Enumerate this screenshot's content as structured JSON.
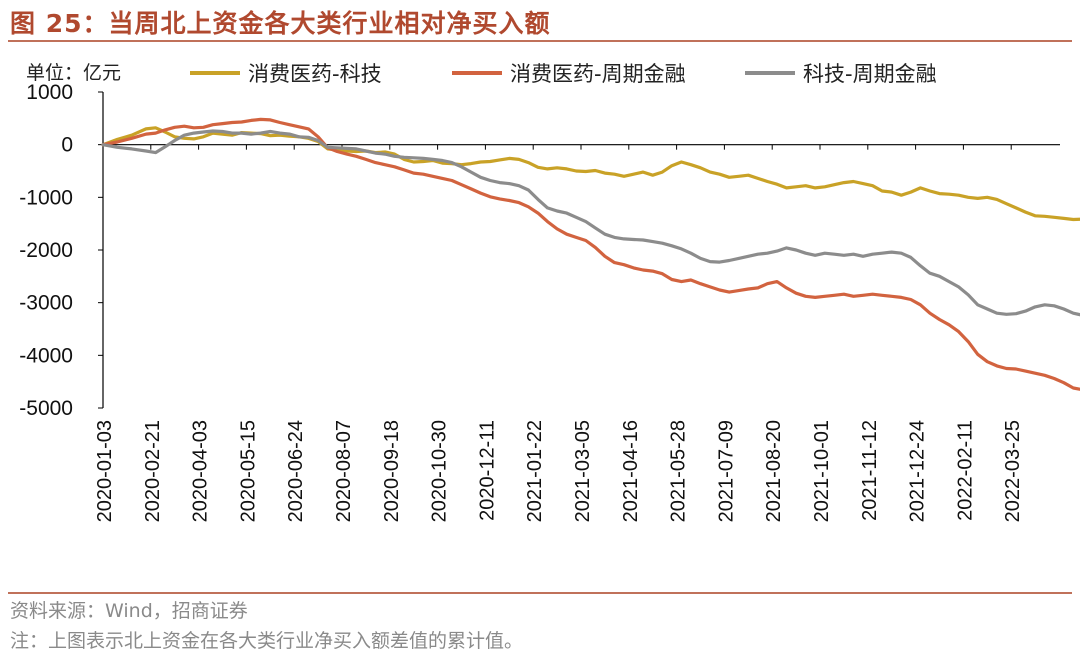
{
  "figure": {
    "title": "图 25：当周北上资金各大类行业相对净买入额",
    "source": "资料来源：Wind，招商证券",
    "note": "注：上图表示北上资金在各大类行业净买入额差值的累计值。"
  },
  "chart_data": {
    "type": "line",
    "unit_label": "单位：亿元",
    "ylim": [
      -5000,
      1000
    ],
    "yticks": [
      1000,
      0,
      -1000,
      -2000,
      -3000,
      -4000,
      -5000
    ],
    "xticks": [
      "2020-01-03",
      "2020-02-21",
      "2020-04-03",
      "2020-05-15",
      "2020-06-24",
      "2020-08-07",
      "2020-09-18",
      "2020-10-30",
      "2020-12-11",
      "2021-01-22",
      "2021-03-05",
      "2021-04-16",
      "2021-05-28",
      "2021-07-09",
      "2021-08-20",
      "2021-10-01",
      "2021-11-12",
      "2021-12-24",
      "2022-02-11",
      "2022-03-25"
    ],
    "x_end_index": 20,
    "legend_position": "top",
    "series": [
      {
        "name": "消费医药-科技",
        "color": "#c9a227",
        "points": [
          [
            0,
            0
          ],
          [
            0.3,
            100
          ],
          [
            0.6,
            180
          ],
          [
            0.9,
            300
          ],
          [
            1.1,
            320
          ],
          [
            1.3,
            240
          ],
          [
            1.5,
            150
          ],
          [
            1.7,
            120
          ],
          [
            1.9,
            110
          ],
          [
            2.1,
            150
          ],
          [
            2.3,
            220
          ],
          [
            2.5,
            200
          ],
          [
            2.7,
            180
          ],
          [
            2.9,
            230
          ],
          [
            3.1,
            220
          ],
          [
            3.3,
            210
          ],
          [
            3.5,
            170
          ],
          [
            3.7,
            180
          ],
          [
            3.9,
            160
          ],
          [
            4.1,
            150
          ],
          [
            4.3,
            120
          ],
          [
            4.5,
            60
          ],
          [
            4.7,
            -80
          ],
          [
            4.9,
            -100
          ],
          [
            5.1,
            -120
          ],
          [
            5.3,
            -130
          ],
          [
            5.5,
            -120
          ],
          [
            5.7,
            -150
          ],
          [
            5.9,
            -140
          ],
          [
            6.1,
            -180
          ],
          [
            6.3,
            -280
          ],
          [
            6.5,
            -330
          ],
          [
            6.7,
            -320
          ],
          [
            6.9,
            -300
          ],
          [
            7.1,
            -350
          ],
          [
            7.3,
            -360
          ],
          [
            7.5,
            -380
          ],
          [
            7.7,
            -360
          ],
          [
            7.9,
            -330
          ],
          [
            8.1,
            -320
          ],
          [
            8.3,
            -290
          ],
          [
            8.5,
            -260
          ],
          [
            8.7,
            -280
          ],
          [
            8.9,
            -340
          ],
          [
            9.1,
            -430
          ],
          [
            9.3,
            -460
          ],
          [
            9.5,
            -440
          ],
          [
            9.7,
            -460
          ],
          [
            9.9,
            -500
          ],
          [
            10.1,
            -510
          ],
          [
            10.3,
            -490
          ],
          [
            10.5,
            -540
          ],
          [
            10.7,
            -560
          ],
          [
            10.9,
            -600
          ],
          [
            11.1,
            -560
          ],
          [
            11.3,
            -520
          ],
          [
            11.5,
            -580
          ],
          [
            11.7,
            -520
          ],
          [
            11.9,
            -400
          ],
          [
            12.1,
            -330
          ],
          [
            12.3,
            -380
          ],
          [
            12.5,
            -440
          ],
          [
            12.7,
            -520
          ],
          [
            12.9,
            -560
          ],
          [
            13.1,
            -620
          ],
          [
            13.3,
            -600
          ],
          [
            13.5,
            -580
          ],
          [
            13.7,
            -640
          ],
          [
            13.9,
            -700
          ],
          [
            14.1,
            -750
          ],
          [
            14.3,
            -820
          ],
          [
            14.5,
            -800
          ],
          [
            14.7,
            -780
          ],
          [
            14.9,
            -820
          ],
          [
            15.1,
            -800
          ],
          [
            15.3,
            -760
          ],
          [
            15.5,
            -720
          ],
          [
            15.7,
            -700
          ],
          [
            15.9,
            -740
          ],
          [
            16.1,
            -780
          ],
          [
            16.3,
            -880
          ],
          [
            16.5,
            -900
          ],
          [
            16.7,
            -960
          ],
          [
            16.9,
            -900
          ],
          [
            17.1,
            -820
          ],
          [
            17.3,
            -880
          ],
          [
            17.5,
            -930
          ],
          [
            17.7,
            -940
          ],
          [
            17.9,
            -960
          ],
          [
            18.1,
            -1000
          ],
          [
            18.3,
            -1020
          ],
          [
            18.5,
            -1000
          ],
          [
            18.7,
            -1040
          ],
          [
            18.9,
            -1120
          ],
          [
            19.1,
            -1200
          ],
          [
            19.3,
            -1280
          ],
          [
            19.5,
            -1350
          ],
          [
            19.7,
            -1360
          ],
          [
            19.9,
            -1380
          ],
          [
            20.1,
            -1400
          ],
          [
            20.3,
            -1420
          ],
          [
            20.6,
            -1410
          ]
        ]
      },
      {
        "name": "消费医药-周期金融",
        "color": "#d2633f",
        "points": [
          [
            0,
            0
          ],
          [
            0.3,
            50
          ],
          [
            0.6,
            120
          ],
          [
            0.9,
            200
          ],
          [
            1.1,
            220
          ],
          [
            1.3,
            280
          ],
          [
            1.5,
            330
          ],
          [
            1.7,
            350
          ],
          [
            1.9,
            320
          ],
          [
            2.1,
            330
          ],
          [
            2.3,
            380
          ],
          [
            2.5,
            400
          ],
          [
            2.7,
            420
          ],
          [
            2.9,
            430
          ],
          [
            3.1,
            460
          ],
          [
            3.3,
            480
          ],
          [
            3.5,
            470
          ],
          [
            3.7,
            420
          ],
          [
            3.9,
            380
          ],
          [
            4.1,
            340
          ],
          [
            4.3,
            300
          ],
          [
            4.5,
            150
          ],
          [
            4.7,
            -60
          ],
          [
            4.9,
            -130
          ],
          [
            5.1,
            -180
          ],
          [
            5.3,
            -220
          ],
          [
            5.5,
            -280
          ],
          [
            5.7,
            -340
          ],
          [
            5.9,
            -380
          ],
          [
            6.1,
            -420
          ],
          [
            6.3,
            -480
          ],
          [
            6.5,
            -540
          ],
          [
            6.7,
            -560
          ],
          [
            6.9,
            -600
          ],
          [
            7.1,
            -640
          ],
          [
            7.3,
            -680
          ],
          [
            7.5,
            -760
          ],
          [
            7.7,
            -840
          ],
          [
            7.9,
            -920
          ],
          [
            8.1,
            -990
          ],
          [
            8.3,
            -1030
          ],
          [
            8.5,
            -1060
          ],
          [
            8.7,
            -1100
          ],
          [
            8.9,
            -1180
          ],
          [
            9.1,
            -1300
          ],
          [
            9.3,
            -1460
          ],
          [
            9.5,
            -1600
          ],
          [
            9.7,
            -1700
          ],
          [
            9.9,
            -1760
          ],
          [
            10.1,
            -1820
          ],
          [
            10.3,
            -1950
          ],
          [
            10.5,
            -2120
          ],
          [
            10.7,
            -2240
          ],
          [
            10.9,
            -2280
          ],
          [
            11.1,
            -2340
          ],
          [
            11.3,
            -2380
          ],
          [
            11.5,
            -2400
          ],
          [
            11.7,
            -2450
          ],
          [
            11.9,
            -2560
          ],
          [
            12.1,
            -2600
          ],
          [
            12.3,
            -2570
          ],
          [
            12.5,
            -2640
          ],
          [
            12.7,
            -2700
          ],
          [
            12.9,
            -2760
          ],
          [
            13.1,
            -2800
          ],
          [
            13.3,
            -2770
          ],
          [
            13.5,
            -2740
          ],
          [
            13.7,
            -2720
          ],
          [
            13.9,
            -2640
          ],
          [
            14.1,
            -2600
          ],
          [
            14.3,
            -2720
          ],
          [
            14.5,
            -2820
          ],
          [
            14.7,
            -2880
          ],
          [
            14.9,
            -2900
          ],
          [
            15.1,
            -2880
          ],
          [
            15.3,
            -2860
          ],
          [
            15.5,
            -2840
          ],
          [
            15.7,
            -2880
          ],
          [
            15.9,
            -2860
          ],
          [
            16.1,
            -2840
          ],
          [
            16.3,
            -2860
          ],
          [
            16.5,
            -2880
          ],
          [
            16.7,
            -2900
          ],
          [
            16.9,
            -2940
          ],
          [
            17.1,
            -3040
          ],
          [
            17.3,
            -3200
          ],
          [
            17.5,
            -3320
          ],
          [
            17.7,
            -3420
          ],
          [
            17.9,
            -3550
          ],
          [
            18.1,
            -3740
          ],
          [
            18.3,
            -3980
          ],
          [
            18.5,
            -4120
          ],
          [
            18.7,
            -4200
          ],
          [
            18.9,
            -4250
          ],
          [
            19.1,
            -4260
          ],
          [
            19.3,
            -4300
          ],
          [
            19.5,
            -4340
          ],
          [
            19.7,
            -4380
          ],
          [
            19.9,
            -4440
          ],
          [
            20.1,
            -4520
          ],
          [
            20.3,
            -4620
          ],
          [
            20.6,
            -4670
          ]
        ]
      },
      {
        "name": "科技-周期金融",
        "color": "#8c8c8c",
        "points": [
          [
            0,
            0
          ],
          [
            0.3,
            -50
          ],
          [
            0.6,
            -80
          ],
          [
            0.9,
            -120
          ],
          [
            1.1,
            -150
          ],
          [
            1.3,
            -40
          ],
          [
            1.5,
            80
          ],
          [
            1.7,
            180
          ],
          [
            1.9,
            220
          ],
          [
            2.1,
            240
          ],
          [
            2.3,
            260
          ],
          [
            2.5,
            250
          ],
          [
            2.7,
            220
          ],
          [
            2.9,
            220
          ],
          [
            3.1,
            200
          ],
          [
            3.3,
            220
          ],
          [
            3.5,
            250
          ],
          [
            3.7,
            220
          ],
          [
            3.9,
            200
          ],
          [
            4.1,
            150
          ],
          [
            4.3,
            140
          ],
          [
            4.5,
            80
          ],
          [
            4.7,
            -50
          ],
          [
            4.9,
            -60
          ],
          [
            5.1,
            -70
          ],
          [
            5.3,
            -80
          ],
          [
            5.5,
            -120
          ],
          [
            5.7,
            -160
          ],
          [
            5.9,
            -180
          ],
          [
            6.1,
            -220
          ],
          [
            6.3,
            -240
          ],
          [
            6.5,
            -250
          ],
          [
            6.7,
            -260
          ],
          [
            6.9,
            -280
          ],
          [
            7.1,
            -300
          ],
          [
            7.3,
            -340
          ],
          [
            7.5,
            -420
          ],
          [
            7.7,
            -520
          ],
          [
            7.9,
            -620
          ],
          [
            8.1,
            -680
          ],
          [
            8.3,
            -720
          ],
          [
            8.5,
            -740
          ],
          [
            8.7,
            -780
          ],
          [
            8.9,
            -860
          ],
          [
            9.1,
            -1040
          ],
          [
            9.3,
            -1200
          ],
          [
            9.5,
            -1260
          ],
          [
            9.7,
            -1300
          ],
          [
            9.9,
            -1380
          ],
          [
            10.1,
            -1460
          ],
          [
            10.3,
            -1580
          ],
          [
            10.5,
            -1700
          ],
          [
            10.7,
            -1760
          ],
          [
            10.9,
            -1790
          ],
          [
            11.1,
            -1800
          ],
          [
            11.3,
            -1810
          ],
          [
            11.5,
            -1840
          ],
          [
            11.7,
            -1870
          ],
          [
            11.9,
            -1920
          ],
          [
            12.1,
            -1980
          ],
          [
            12.3,
            -2060
          ],
          [
            12.5,
            -2160
          ],
          [
            12.7,
            -2220
          ],
          [
            12.9,
            -2230
          ],
          [
            13.1,
            -2200
          ],
          [
            13.3,
            -2160
          ],
          [
            13.5,
            -2120
          ],
          [
            13.7,
            -2080
          ],
          [
            13.9,
            -2060
          ],
          [
            14.1,
            -2020
          ],
          [
            14.3,
            -1960
          ],
          [
            14.5,
            -2000
          ],
          [
            14.7,
            -2060
          ],
          [
            14.9,
            -2100
          ],
          [
            15.1,
            -2060
          ],
          [
            15.3,
            -2080
          ],
          [
            15.5,
            -2100
          ],
          [
            15.7,
            -2080
          ],
          [
            15.9,
            -2120
          ],
          [
            16.1,
            -2080
          ],
          [
            16.3,
            -2060
          ],
          [
            16.5,
            -2040
          ],
          [
            16.7,
            -2060
          ],
          [
            16.9,
            -2140
          ],
          [
            17.1,
            -2300
          ],
          [
            17.3,
            -2440
          ],
          [
            17.5,
            -2500
          ],
          [
            17.7,
            -2600
          ],
          [
            17.9,
            -2700
          ],
          [
            18.1,
            -2850
          ],
          [
            18.3,
            -3040
          ],
          [
            18.5,
            -3120
          ],
          [
            18.7,
            -3200
          ],
          [
            18.9,
            -3220
          ],
          [
            19.1,
            -3210
          ],
          [
            19.3,
            -3160
          ],
          [
            19.5,
            -3080
          ],
          [
            19.7,
            -3040
          ],
          [
            19.9,
            -3060
          ],
          [
            20.1,
            -3120
          ],
          [
            20.3,
            -3200
          ],
          [
            20.6,
            -3260
          ]
        ]
      }
    ]
  }
}
